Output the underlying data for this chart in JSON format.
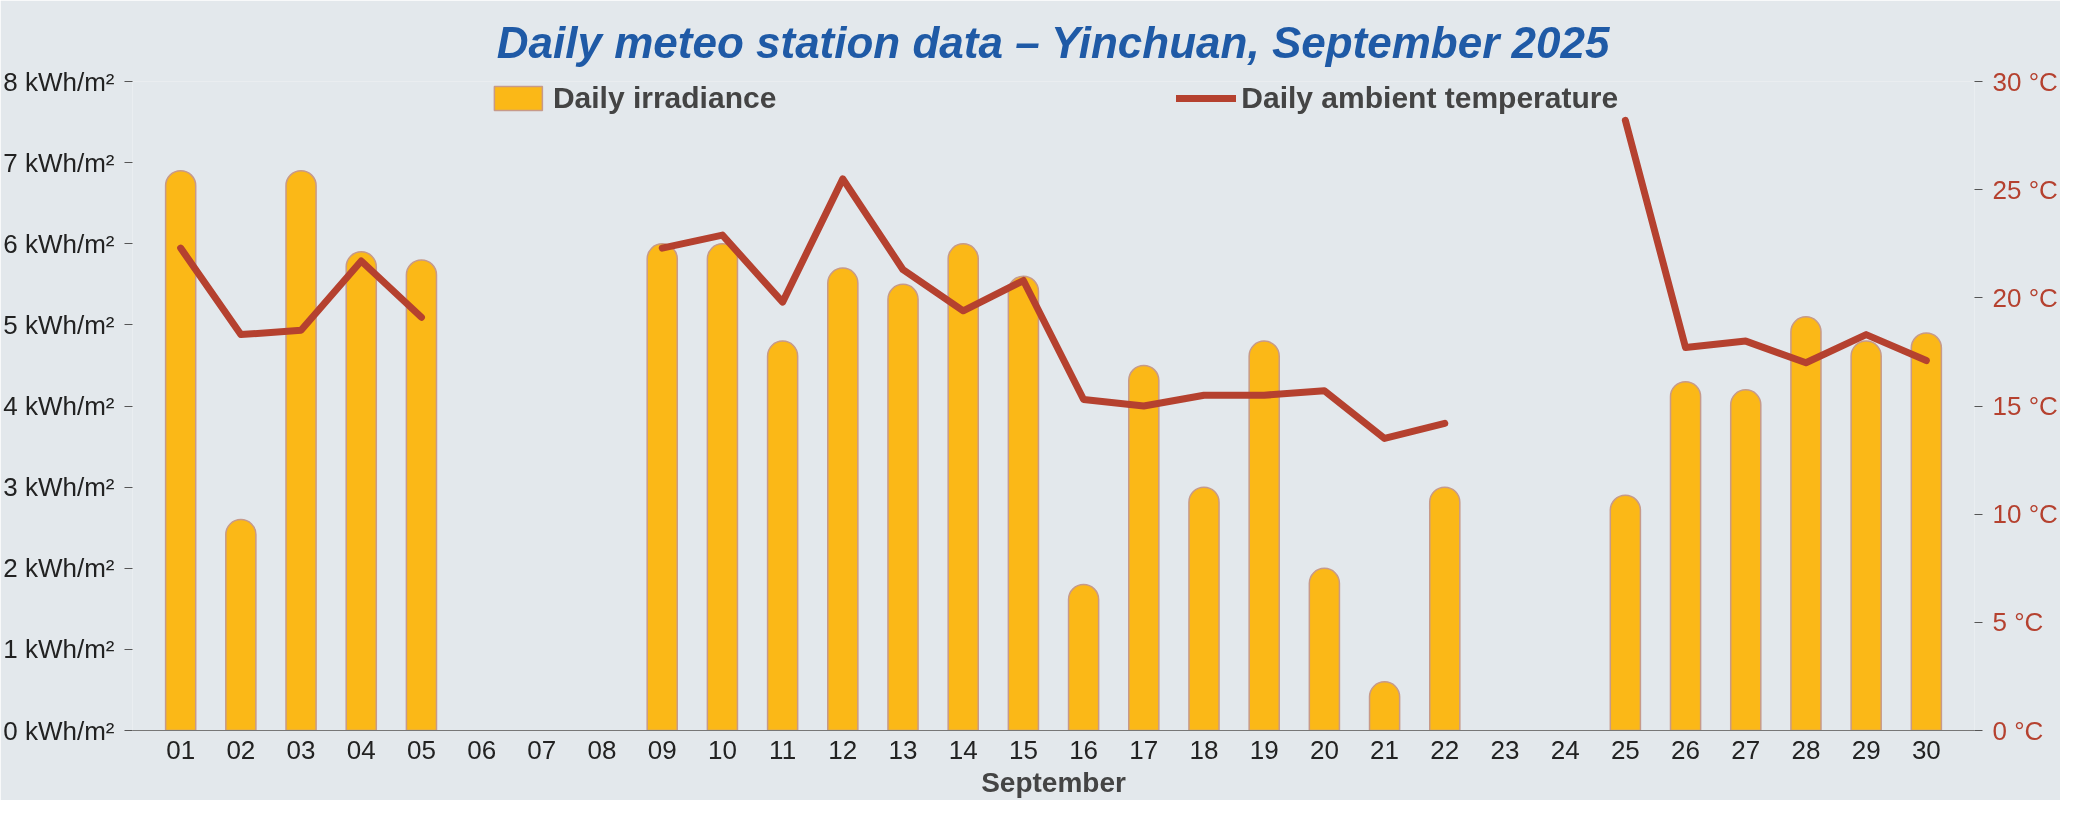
{
  "chart_data": {
    "type": "bar",
    "title": "Daily meteo station data – Yinchuan, September 2025",
    "xlabel": "September",
    "categories": [
      "01",
      "02",
      "03",
      "04",
      "05",
      "06",
      "07",
      "08",
      "09",
      "10",
      "11",
      "12",
      "13",
      "14",
      "15",
      "16",
      "17",
      "18",
      "19",
      "20",
      "21",
      "22",
      "23",
      "24",
      "25",
      "26",
      "27",
      "28",
      "29",
      "30"
    ],
    "series": [
      {
        "name": "Daily irradiance",
        "color": "#fbb817",
        "values": [
          6.9,
          2.6,
          6.9,
          5.9,
          5.8,
          null,
          null,
          null,
          6.0,
          6.0,
          4.8,
          5.7,
          5.5,
          6.0,
          5.6,
          1.8,
          4.5,
          3.0,
          4.8,
          2.0,
          0.6,
          3.0,
          null,
          null,
          2.9,
          4.3,
          4.2,
          5.1,
          4.8,
          4.9
        ]
      },
      {
        "name": "Daily ambient temperature",
        "type": "line",
        "axis": "y2",
        "color": "#b5412f",
        "values": [
          22.3,
          18.3,
          18.5,
          21.7,
          19.1,
          null,
          null,
          null,
          22.3,
          22.9,
          19.8,
          25.5,
          21.3,
          19.4,
          20.8,
          15.3,
          15.0,
          15.5,
          15.5,
          15.7,
          13.5,
          14.2,
          null,
          null,
          28.2,
          17.7,
          18.0,
          17.0,
          18.3,
          17.1
        ]
      }
    ],
    "ylim": [
      0,
      8
    ],
    "yticks": [
      {
        "value": 0,
        "label": "0 kWh/m²"
      },
      {
        "value": 1,
        "label": "1 kWh/m²"
      },
      {
        "value": 2,
        "label": "2 kWh/m²"
      },
      {
        "value": 3,
        "label": "3 kWh/m²"
      },
      {
        "value": 4,
        "label": "4 kWh/m²"
      },
      {
        "value": 5,
        "label": "5 kWh/m²"
      },
      {
        "value": 6,
        "label": "6 kWh/m²"
      },
      {
        "value": 7,
        "label": "7 kWh/m²"
      },
      {
        "value": 8,
        "label": "8 kWh/m²"
      }
    ],
    "y2lim": [
      0,
      30
    ],
    "y2ticks": [
      {
        "value": 0,
        "label": "0 °C"
      },
      {
        "value": 5,
        "label": "5 °C"
      },
      {
        "value": 10,
        "label": "10 °C"
      },
      {
        "value": 15,
        "label": "15 °C"
      },
      {
        "value": 20,
        "label": "20 °C"
      },
      {
        "value": 25,
        "label": "25 °C"
      },
      {
        "value": 30,
        "label": "30 °C"
      }
    ],
    "grid": false,
    "legend": "top"
  }
}
